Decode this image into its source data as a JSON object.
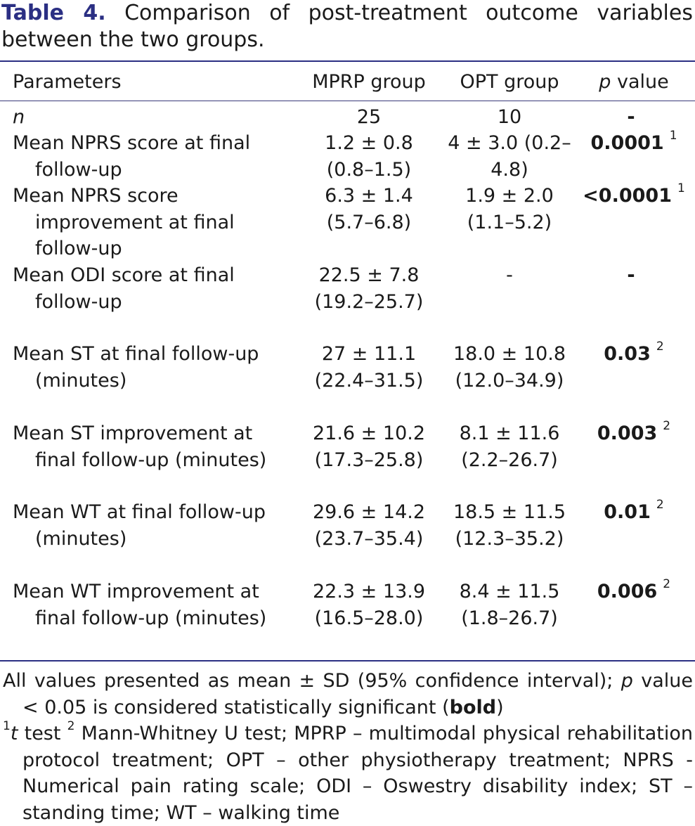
{
  "caption": {
    "label": "Table 4.",
    "text": "Comparison of post-treatment outcome variables between the two groups."
  },
  "table": {
    "headers": {
      "parameters": "Parameters",
      "mprp": "MPRP group",
      "opt": "OPT group",
      "p_prefix": "p",
      "p_suffix": "value"
    },
    "rows": [
      {
        "param": "n",
        "mprp": "25",
        "opt": "10",
        "p": "-",
        "sup": ""
      },
      {
        "param": "Mean NPRS score at final follow-up",
        "mprp": "1.2 ± 0.8 (0.8–1.5)",
        "opt": "4 ± 3.0 (0.2–4.8)",
        "p": "0.0001",
        "sup": "1"
      },
      {
        "param": "Mean NPRS score improvement at final follow-up",
        "mprp": "6.3 ± 1.4 (5.7–6.8)",
        "opt": "1.9 ± 2.0 (1.1–5.2)",
        "p": "<0.0001",
        "sup": "1"
      },
      {
        "param": "Mean ODI score at final follow-up",
        "mprp": "22.5 ± 7.8 (19.2–25.7)",
        "opt": "-",
        "p": "-",
        "sup": ""
      },
      {
        "param": "Mean ST at final follow-up (minutes)",
        "mprp": "27 ± 11.1 (22.4–31.5)",
        "opt": "18.0 ± 10.8 (12.0–34.9)",
        "p": "0.03",
        "sup": "2"
      },
      {
        "param": "Mean ST improvement at final follow-up (minutes)",
        "mprp": "21.6 ± 10.2 (17.3–25.8)",
        "opt": "8.1 ± 11.6 (2.2–26.7)",
        "p": "0.003",
        "sup": "2"
      },
      {
        "param": "Mean WT at final follow-up (minutes)",
        "mprp": "29.6 ± 14.2 (23.7–35.4)",
        "opt": "18.5 ± 11.5 (12.3–35.2)",
        "p": "0.01",
        "sup": "2"
      },
      {
        "param": "Mean WT improvement at final follow-up (minutes)",
        "mprp": "22.3 ± 13.9 (16.5–28.0)",
        "opt": "8.4 ± 11.5 (1.8–26.7)",
        "p": "0.006",
        "sup": "2"
      }
    ]
  },
  "footnotes": {
    "line1_a": "All values presented as mean ± SD (95% confidence interval);",
    "line1_p": "p",
    "line1_b": "value < 0.05 is considered statistically significant (",
    "line1_bold": "bold",
    "line1_c": ")",
    "sup1": "1",
    "t": "t",
    "line2_a": "test",
    "sup2": "2",
    "line2_b": "Mann-Whitney U test; MPRP – multimodal physical rehabilitation protocol treatment; OPT – other physiotherapy treatment; NPRS - Numerical pain rating scale; ODI – Oswestry disability index; ST – standing time; WT – walking time"
  },
  "colors": {
    "accent": "#2b2f83",
    "text": "#1a1a1a"
  }
}
